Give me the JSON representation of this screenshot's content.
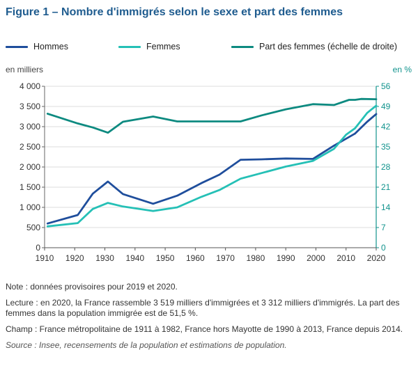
{
  "title": "Figure 1 – Nombre d'immigrés selon le sexe et part des femmes",
  "legend": {
    "hommes": "Hommes",
    "femmes": "Femmes",
    "part": "Part des femmes (échelle de droite)"
  },
  "units": {
    "left": "en milliers",
    "right": "en %"
  },
  "colors": {
    "hommes": "#1f4e9c",
    "femmes": "#25c0b6",
    "part": "#0d8a80",
    "axis_right": "#11938d",
    "grid": "#dddddd"
  },
  "notes": {
    "note": "Note : données provisoires pour 2019 et 2020.",
    "lecture": "Lecture : en 2020, la France rassemble 3 519 milliers d'immigrées et 3 312 milliers d'immigrés. La part des femmes dans la population immigrée est de 51,5 %.",
    "champ": "Champ : France métropolitaine de 1911 à 1982, France hors Mayotte de 1990 à 2013, France depuis 2014.",
    "source": "Source : Insee, recensements de la population et estimations de population."
  },
  "chart_data": {
    "type": "line",
    "xlim": [
      1910,
      2020
    ],
    "x_ticks": [
      "1910",
      "1920",
      "1930",
      "1940",
      "1950",
      "1960",
      "1970",
      "1980",
      "1990",
      "2000",
      "2010",
      "2020"
    ],
    "ylim_left": [
      0,
      4000
    ],
    "y_ticks_left": [
      "0",
      "500",
      "1 000",
      "1 500",
      "2 000",
      "2 500",
      "3 000",
      "3 500",
      "4 000"
    ],
    "ylim_right": [
      0,
      56
    ],
    "y_ticks_right": [
      "0",
      "7",
      "14",
      "21",
      "28",
      "35",
      "42",
      "49",
      "56"
    ],
    "grid": true,
    "legend_position": "top",
    "series": [
      {
        "name": "Hommes",
        "axis": "left",
        "key": "hommes",
        "x": [
          1911,
          1921,
          1926,
          1931,
          1936,
          1946,
          1954,
          1962,
          1968,
          1975,
          1982,
          1990,
          1999,
          2006,
          2013,
          2017,
          2020
        ],
        "y": [
          600,
          810,
          1340,
          1640,
          1330,
          1090,
          1290,
          1600,
          1810,
          2180,
          2190,
          2210,
          2200,
          2530,
          2830,
          3120,
          3312
        ]
      },
      {
        "name": "Femmes",
        "axis": "left",
        "key": "femmes",
        "x": [
          1911,
          1921,
          1926,
          1931,
          1936,
          1946,
          1954,
          1962,
          1968,
          1975,
          1982,
          1990,
          1999,
          2006,
          2010,
          2013,
          2015,
          2017,
          2018,
          2020
        ],
        "y": [
          530,
          610,
          960,
          1110,
          1020,
          910,
          1000,
          1260,
          1430,
          1710,
          1850,
          2010,
          2150,
          2450,
          2800,
          2960,
          3150,
          3340,
          3400,
          3519
        ]
      },
      {
        "name": "Part des femmes (échelle de droite)",
        "axis": "right",
        "key": "part",
        "x": [
          1911,
          1921,
          1926,
          1931,
          1936,
          1946,
          1954,
          1962,
          1968,
          1975,
          1982,
          1990,
          1999,
          2006,
          2011,
          2013,
          2015,
          2020
        ],
        "y": [
          46.5,
          43.1,
          41.7,
          39.9,
          43.7,
          45.5,
          43.8,
          43.8,
          43.8,
          43.8,
          45.9,
          48.0,
          49.8,
          49.5,
          51.3,
          51.3,
          51.6,
          51.5
        ]
      }
    ]
  }
}
